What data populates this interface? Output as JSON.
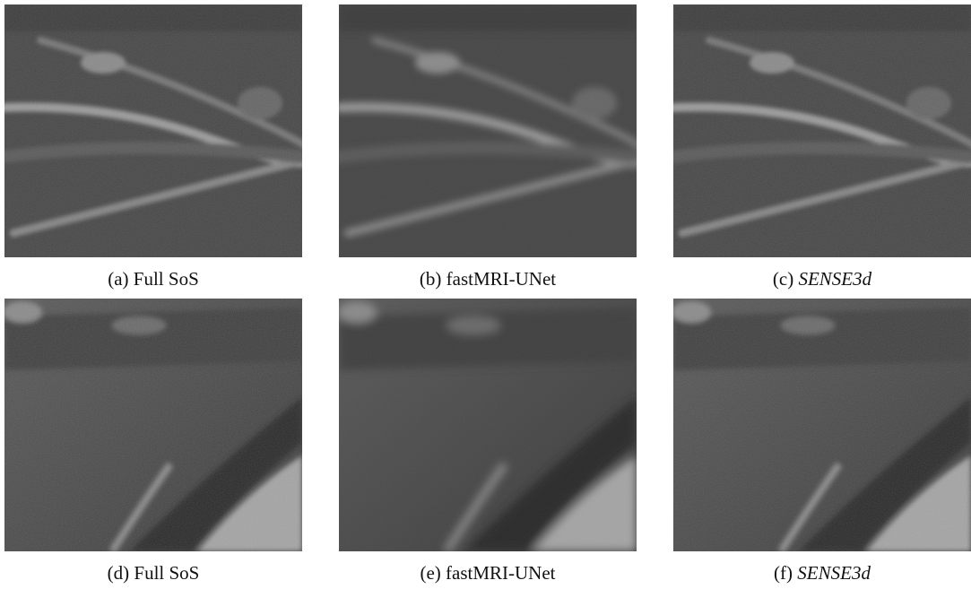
{
  "panels": [
    {
      "label": "(a)",
      "name": "Full SoS",
      "italic": false
    },
    {
      "label": "(b)",
      "name": "fastMRI-UNet",
      "italic": false
    },
    {
      "label": "(c)",
      "name": "SENSE3d",
      "italic": true
    },
    {
      "label": "(d)",
      "name": "Full SoS",
      "italic": false
    },
    {
      "label": "(e)",
      "name": "fastMRI-UNet",
      "italic": false
    },
    {
      "label": "(f)",
      "name": "SENSE3d",
      "italic": true
    }
  ]
}
